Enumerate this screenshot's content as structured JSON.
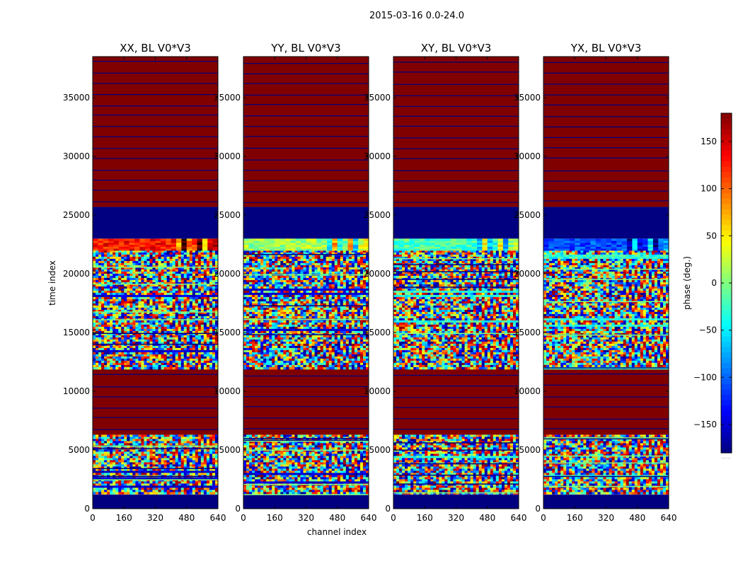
{
  "chart_data": {
    "type": "heatmap",
    "title": "2015-03-16 0.0-24.0",
    "xlabel": "channel index",
    "ylabel": "time index",
    "xlim": [
      0,
      640
    ],
    "ylim": [
      0,
      38500
    ],
    "xticks": [
      0,
      160,
      320,
      480,
      640
    ],
    "yticks": [
      0,
      5000,
      10000,
      15000,
      20000,
      25000,
      30000,
      35000
    ],
    "panels": [
      {
        "title": "XX, BL V0*V3",
        "pol": "XX"
      },
      {
        "title": "YY, BL V0*V3",
        "pol": "YY"
      },
      {
        "title": "XY, BL V0*V3",
        "pol": "XY"
      },
      {
        "title": "YX, BL V0*V3",
        "pol": "YX"
      }
    ],
    "colorbar": {
      "label": "phase (deg.)",
      "range": [
        -180,
        180
      ],
      "ticks": [
        150,
        100,
        50,
        0,
        -50,
        -100,
        -150
      ],
      "tick_labels": [
        "150",
        "100",
        "50",
        "0",
        "−50",
        "−100",
        "−150"
      ],
      "footnote": "......",
      "colormap": "jet"
    },
    "bands": [
      {
        "t0": 0,
        "t1": 1200,
        "kind": "flagged_low",
        "phase": -180
      },
      {
        "t0": 1200,
        "t1": 6300,
        "kind": "noisy_phase"
      },
      {
        "t0": 6300,
        "t1": 11900,
        "kind": "flagged_high",
        "phase": 180
      },
      {
        "t0": 11900,
        "t1": 22000,
        "kind": "noisy_phase"
      },
      {
        "t0": 22000,
        "t1": 23000,
        "kind": "smooth_strip"
      },
      {
        "t0": 23000,
        "t1": 25700,
        "kind": "flagged_low",
        "phase": -180
      },
      {
        "t0": 25700,
        "t1": 38500,
        "kind": "flagged_high",
        "phase": 180
      }
    ],
    "colors": {
      "background": "#ffffff",
      "high": "#800000",
      "low": "#000080",
      "line": "#000080"
    }
  }
}
